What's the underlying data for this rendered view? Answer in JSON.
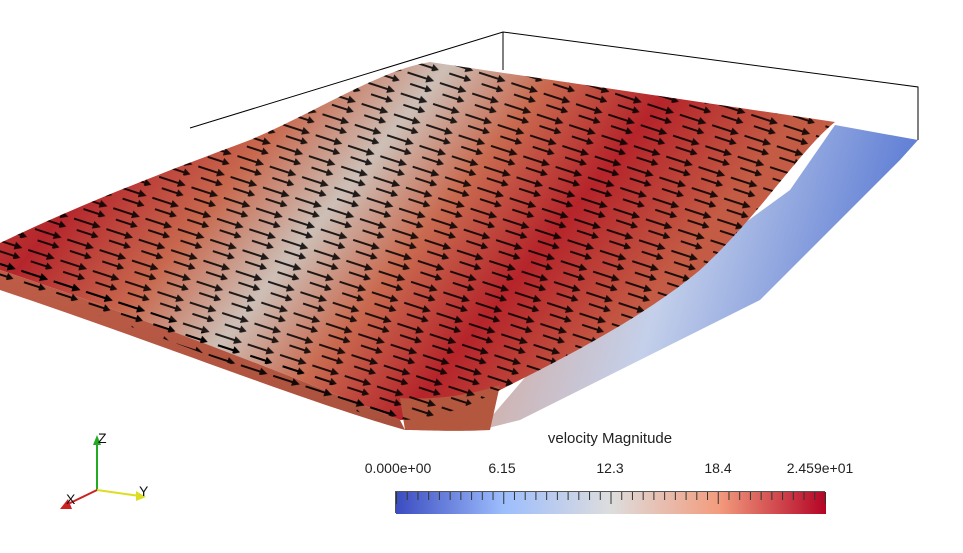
{
  "legend": {
    "title": "velocity Magnitude",
    "ticks": [
      "0.000e+00",
      "6.15",
      "12.3",
      "18.4",
      "2.459e+01"
    ],
    "range": [
      0,
      24.59
    ],
    "colormap": [
      "#3b4cc0",
      "#9dbdfd",
      "#dddddd",
      "#f39c7e",
      "#b40426"
    ]
  },
  "orientation": {
    "x_label": "X",
    "y_label": "Y",
    "z_label": "Z",
    "x_color": "#cc2222",
    "y_color": "#dddd22",
    "z_color": "#22aa22"
  },
  "colors": {
    "slab_top": "#c55a42",
    "slab_side": "#a8553c",
    "high_band": "#b5222a",
    "low_band": "#c9c0b8",
    "arrow": "#000000",
    "outline": "#000000"
  }
}
